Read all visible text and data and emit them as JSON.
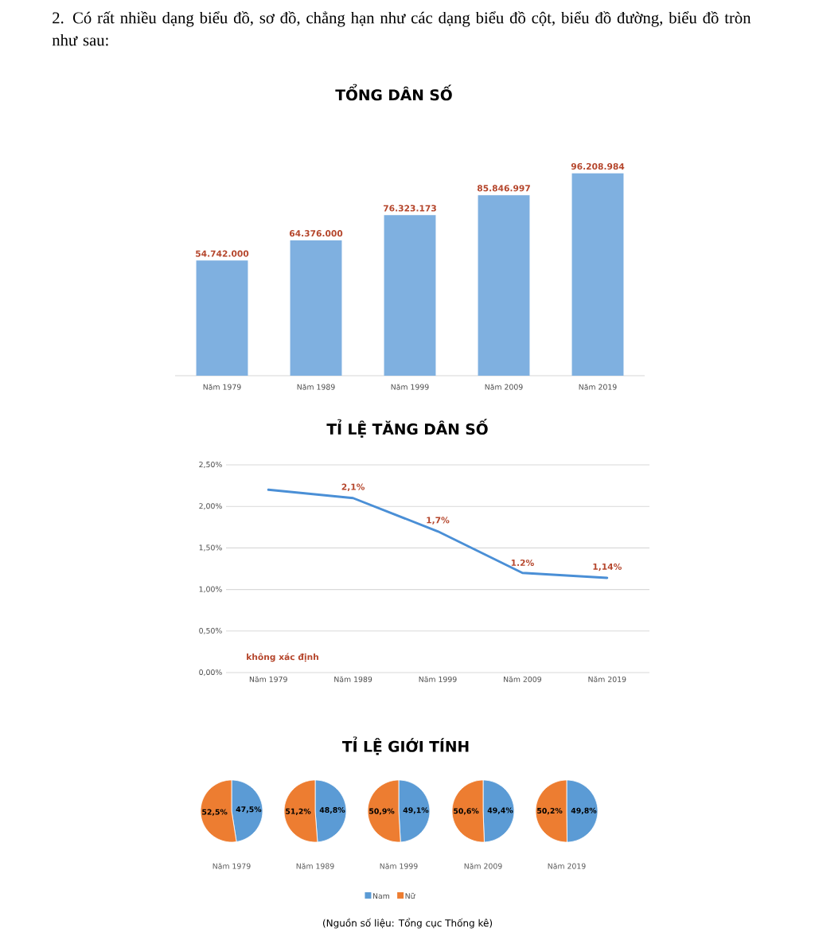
{
  "chart_data": [
    {
      "type": "bar",
      "title": "TỔNG DÂN SỐ",
      "categories": [
        "Năm 1979",
        "Năm 1989",
        "Năm 1999",
        "Năm 2009",
        "Năm 2019"
      ],
      "values": [
        54742000,
        64376000,
        76323173,
        85846997,
        96208984
      ],
      "value_labels": [
        "54.742.000",
        "64.376.000",
        "76.323.173",
        "85.846.997",
        "96.208.984"
      ],
      "color": "#7fb0e0",
      "annotations": [
        "2. Có rất nhiều dạng biểu đồ, sơ đồ, chẳng hạn như các dạng biểu đồ cột, biểu đồ đường, biểu đồ tròn như sau:"
      ]
    },
    {
      "type": "line",
      "title": "TỈ LỆ TĂNG DÂN SỐ",
      "categories": [
        "Năm 1979",
        "Năm 1989",
        "Năm 1999",
        "Năm 2009",
        "Năm 2019"
      ],
      "values": [
        2.2,
        2.1,
        1.7,
        1.2,
        1.14
      ],
      "value_labels": [
        null,
        "2,1%",
        "1,7%",
        "1.2%",
        "1,14%"
      ],
      "color": "#4a8fd6",
      "ylim": [
        0,
        2.5
      ],
      "yticks": [
        {
          "value": 0,
          "label": "0,00%"
        },
        {
          "value": 0.5,
          "label": "0,50%"
        },
        {
          "value": 1,
          "label": "1,00%"
        },
        {
          "value": 1.5,
          "label": "1,50%"
        },
        {
          "value": 2,
          "label": "2,00%"
        },
        {
          "value": 2.5,
          "label": "2,50%"
        }
      ],
      "grid": "y",
      "marker": "none",
      "annotations": [
        "không xác định"
      ]
    },
    {
      "type": "pie",
      "title": "Năm 1979",
      "categories": [
        null,
        null
      ],
      "values": [
        47.5,
        52.5
      ],
      "value_labels": [
        "47,5%",
        "52,5%"
      ],
      "colors": [
        "#5b9bd5",
        "#ed7d31"
      ],
      "annotations": [
        "TỈ LỆ GIỚI TÍNH"
      ]
    },
    {
      "type": "pie",
      "title": "Năm 1989",
      "categories": [
        null,
        null
      ],
      "values": [
        48.8,
        51.2
      ],
      "value_labels": [
        "48,8%",
        "51,2%"
      ],
      "colors": [
        "#5b9bd5",
        "#ed7d31"
      ]
    },
    {
      "type": "pie",
      "title": "Năm 1999",
      "categories": [
        null,
        null
      ],
      "values": [
        49.1,
        50.9
      ],
      "value_labels": [
        "49,1%",
        "50,9%"
      ],
      "colors": [
        "#5b9bd5",
        "#ed7d31"
      ]
    },
    {
      "type": "pie",
      "title": "Năm 2009",
      "categories": [
        null,
        null
      ],
      "values": [
        49.4,
        50.6
      ],
      "value_labels": [
        "49,4%",
        "50,6%"
      ],
      "colors": [
        "#5b9bd5",
        "#ed7d31"
      ]
    },
    {
      "type": "pie",
      "title": "Năm 2019",
      "categories": [
        "Nam",
        "Nữ"
      ],
      "values": [
        49.8,
        50.2
      ],
      "value_labels": [
        "49,8%",
        "50,2%"
      ],
      "colors": [
        "#5b9bd5",
        "#ed7d31"
      ],
      "legend": "bottom",
      "annotations": [
        "(Nguồn số liệu: Tổng cục Thống kê)"
      ]
    }
  ]
}
